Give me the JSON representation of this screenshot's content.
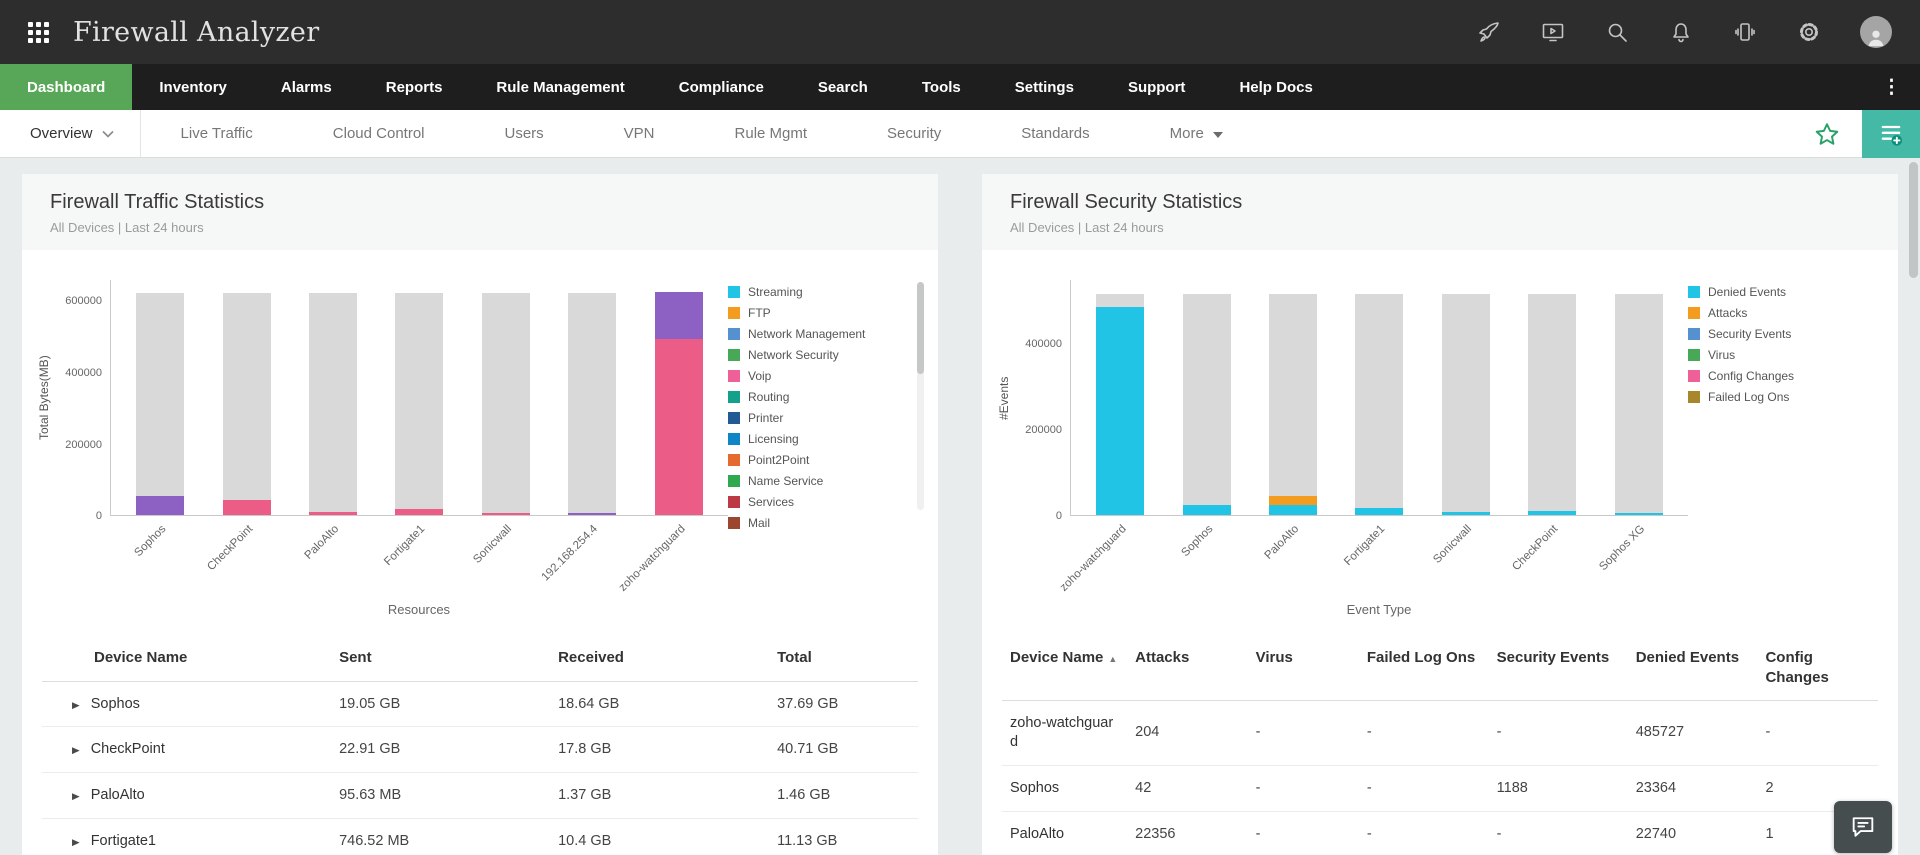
{
  "app": {
    "title": "Firewall Analyzer"
  },
  "theme": {
    "header_bg": "#2d2d2d",
    "nav_bg": "#1e1e1e",
    "active_green": "#58a758",
    "teal_button": "#43b9a6",
    "star_green": "#2ba16a",
    "bar_gray": "#d9d9d9"
  },
  "header": {
    "icons": [
      "apps-grid",
      "rocket",
      "live-demo-screen",
      "search",
      "notifications-bell",
      "mobile-access",
      "settings-gear",
      "user-avatar"
    ]
  },
  "nav": {
    "items": [
      {
        "label": "Dashboard",
        "active": true
      },
      {
        "label": "Inventory"
      },
      {
        "label": "Alarms"
      },
      {
        "label": "Reports"
      },
      {
        "label": "Rule Management"
      },
      {
        "label": "Compliance"
      },
      {
        "label": "Search"
      },
      {
        "label": "Tools"
      },
      {
        "label": "Settings"
      },
      {
        "label": "Support"
      },
      {
        "label": "Help Docs"
      }
    ]
  },
  "subnav": {
    "tabs": [
      {
        "label": "Overview",
        "active": true,
        "chevron": true
      },
      {
        "label": "Live Traffic"
      },
      {
        "label": "Cloud Control"
      },
      {
        "label": "Users"
      },
      {
        "label": "VPN"
      },
      {
        "label": "Rule Mgmt"
      },
      {
        "label": "Security"
      },
      {
        "label": "Standards"
      },
      {
        "label": "More",
        "caret": true
      }
    ]
  },
  "panels": [
    {
      "title": "Firewall Traffic Statistics",
      "subtitle": "All Devices | Last 24 hours",
      "chart_data": {
        "type": "stacked-bar",
        "title": "Firewall Traffic Statistics",
        "ylabel": "Total Bytes(MB)",
        "xlabel": "Resources",
        "ylim": [
          0,
          660000
        ],
        "yticks": [
          0,
          200000,
          400000,
          600000
        ],
        "grid": false,
        "legend_position": "right",
        "legend_scrollable": true,
        "categories": [
          "Sophos",
          "CheckPoint",
          "PaloAlto",
          "Fortigate1",
          "Sonicwall",
          "192.168.254.4",
          "zoho-watchguard"
        ],
        "bars": [
          {
            "category": "Sophos",
            "segments": [
              {
                "label": "purple-segment",
                "color": "#8d60c4",
                "value": 52000
              },
              {
                "label": "other",
                "color": "#d9d9d9",
                "value": 568000
              }
            ]
          },
          {
            "category": "CheckPoint",
            "segments": [
              {
                "label": "pink-segment",
                "color": "#eb5d87",
                "value": 42000
              },
              {
                "label": "other",
                "color": "#d9d9d9",
                "value": 578000
              }
            ]
          },
          {
            "category": "PaloAlto",
            "segments": [
              {
                "label": "pink-segment",
                "color": "#eb5d87",
                "value": 8000
              },
              {
                "label": "other",
                "color": "#d9d9d9",
                "value": 612000
              }
            ]
          },
          {
            "category": "Fortigate1",
            "segments": [
              {
                "label": "pink-segment",
                "color": "#eb5d87",
                "value": 17000
              },
              {
                "label": "other",
                "color": "#d9d9d9",
                "value": 603000
              }
            ]
          },
          {
            "category": "Sonicwall",
            "segments": [
              {
                "label": "pink-segment",
                "color": "#eb5d87",
                "value": 5000
              },
              {
                "label": "other",
                "color": "#d9d9d9",
                "value": 615000
              }
            ]
          },
          {
            "category": "192.168.254.4",
            "segments": [
              {
                "label": "purple-segment",
                "color": "#8d60c4",
                "value": 5000
              },
              {
                "label": "other",
                "color": "#d9d9d9",
                "value": 615000
              }
            ]
          },
          {
            "category": "zoho-watchguard",
            "segments": [
              {
                "label": "pink-segment",
                "color": "#eb5d87",
                "value": 492000
              },
              {
                "label": "purple-segment",
                "color": "#8d60c4",
                "value": 133000
              }
            ]
          }
        ],
        "legend": [
          {
            "label": "Streaming",
            "color": "#22c4e6"
          },
          {
            "label": "FTP",
            "color": "#f49c20"
          },
          {
            "label": "Network Management",
            "color": "#5590cf"
          },
          {
            "label": "Network Security",
            "color": "#47a857"
          },
          {
            "label": "Voip",
            "color": "#ef5f98"
          },
          {
            "label": "Routing",
            "color": "#13a18c"
          },
          {
            "label": "Printer",
            "color": "#235a94"
          },
          {
            "label": "Licensing",
            "color": "#0e86c5"
          },
          {
            "label": "Point2Point",
            "color": "#e66a2e"
          },
          {
            "label": "Name Service",
            "color": "#2fa84f"
          },
          {
            "label": "Services",
            "color": "#bb3a45"
          },
          {
            "label": "Mail",
            "color": "#9c452f"
          }
        ]
      },
      "table": {
        "columns": [
          {
            "label": "Device Name"
          },
          {
            "label": "Sent"
          },
          {
            "label": "Received"
          },
          {
            "label": "Total"
          }
        ],
        "rows": [
          {
            "expandable": true,
            "cells": [
              "Sophos",
              "19.05 GB",
              "18.64 GB",
              "37.69 GB"
            ]
          },
          {
            "expandable": true,
            "cells": [
              "CheckPoint",
              "22.91 GB",
              "17.8 GB",
              "40.71 GB"
            ]
          },
          {
            "expandable": true,
            "cells": [
              "PaloAlto",
              "95.63 MB",
              "1.37 GB",
              "1.46 GB"
            ]
          },
          {
            "expandable": true,
            "cells": [
              "Fortigate1",
              "746.52 MB",
              "10.4 GB",
              "11.13 GB"
            ]
          }
        ]
      }
    },
    {
      "title": "Firewall Security Statistics",
      "subtitle": "All Devices | Last 24 hours",
      "chart_data": {
        "type": "stacked-bar",
        "title": "Firewall Security Statistics",
        "ylabel": "#Events",
        "xlabel": "Event Type",
        "ylim": [
          0,
          550000
        ],
        "yticks": [
          0,
          200000,
          400000
        ],
        "grid": false,
        "legend_position": "right",
        "legend_scrollable": false,
        "categories": [
          "zoho-watchguard",
          "Sophos",
          "PaloAlto",
          "Fortigate1",
          "Sonicwall",
          "CheckPoint",
          "Sophos XG"
        ],
        "bars": [
          {
            "category": "zoho-watchguard",
            "segments": [
              {
                "label": "Denied Events",
                "color": "#22c4e6",
                "value": 485727
              },
              {
                "label": "other",
                "color": "#d9d9d9",
                "value": 29273
              }
            ]
          },
          {
            "category": "Sophos",
            "segments": [
              {
                "label": "Denied Events",
                "color": "#22c4e6",
                "value": 23364
              },
              {
                "label": "other",
                "color": "#d9d9d9",
                "value": 491636
              }
            ]
          },
          {
            "category": "PaloAlto",
            "segments": [
              {
                "label": "Denied Events",
                "color": "#22c4e6",
                "value": 22740
              },
              {
                "label": "Attacks",
                "color": "#f49c20",
                "value": 22356
              },
              {
                "label": "other",
                "color": "#d9d9d9",
                "value": 469904
              }
            ]
          },
          {
            "category": "Fortigate1",
            "segments": [
              {
                "label": "Denied Events",
                "color": "#22c4e6",
                "value": 16000
              },
              {
                "label": "other",
                "color": "#d9d9d9",
                "value": 499000
              }
            ]
          },
          {
            "category": "Sonicwall",
            "segments": [
              {
                "label": "Denied Events",
                "color": "#22c4e6",
                "value": 7000
              },
              {
                "label": "other",
                "color": "#d9d9d9",
                "value": 508000
              }
            ]
          },
          {
            "category": "CheckPoint",
            "segments": [
              {
                "label": "Denied Events",
                "color": "#22c4e6",
                "value": 9000
              },
              {
                "label": "other",
                "color": "#d9d9d9",
                "value": 506000
              }
            ]
          },
          {
            "category": "Sophos XG",
            "segments": [
              {
                "label": "Denied Events",
                "color": "#22c4e6",
                "value": 4000
              },
              {
                "label": "other",
                "color": "#d9d9d9",
                "value": 511000
              }
            ]
          }
        ],
        "legend": [
          {
            "label": "Denied Events",
            "color": "#22c4e6"
          },
          {
            "label": "Attacks",
            "color": "#f49c20"
          },
          {
            "label": "Security Events",
            "color": "#5590cf"
          },
          {
            "label": "Virus",
            "color": "#47a857"
          },
          {
            "label": "Config Changes",
            "color": "#ef5f98"
          },
          {
            "label": "Failed Log Ons",
            "color": "#a8872b"
          }
        ]
      },
      "table": {
        "columns": [
          {
            "label": "Device Name",
            "sorted": true
          },
          {
            "label": "Attacks"
          },
          {
            "label": "Virus"
          },
          {
            "label": "Failed Log Ons"
          },
          {
            "label": "Security Events"
          },
          {
            "label": "Denied Events"
          },
          {
            "label": "Config Changes"
          }
        ],
        "rows": [
          {
            "cells": [
              "zoho-watchguard",
              "204",
              "-",
              "-",
              "-",
              "485727",
              "-"
            ]
          },
          {
            "cells": [
              "Sophos",
              "42",
              "-",
              "-",
              "1188",
              "23364",
              "2"
            ]
          },
          {
            "cells": [
              "PaloAlto",
              "22356",
              "-",
              "-",
              "-",
              "22740",
              "1"
            ]
          }
        ]
      }
    }
  ]
}
